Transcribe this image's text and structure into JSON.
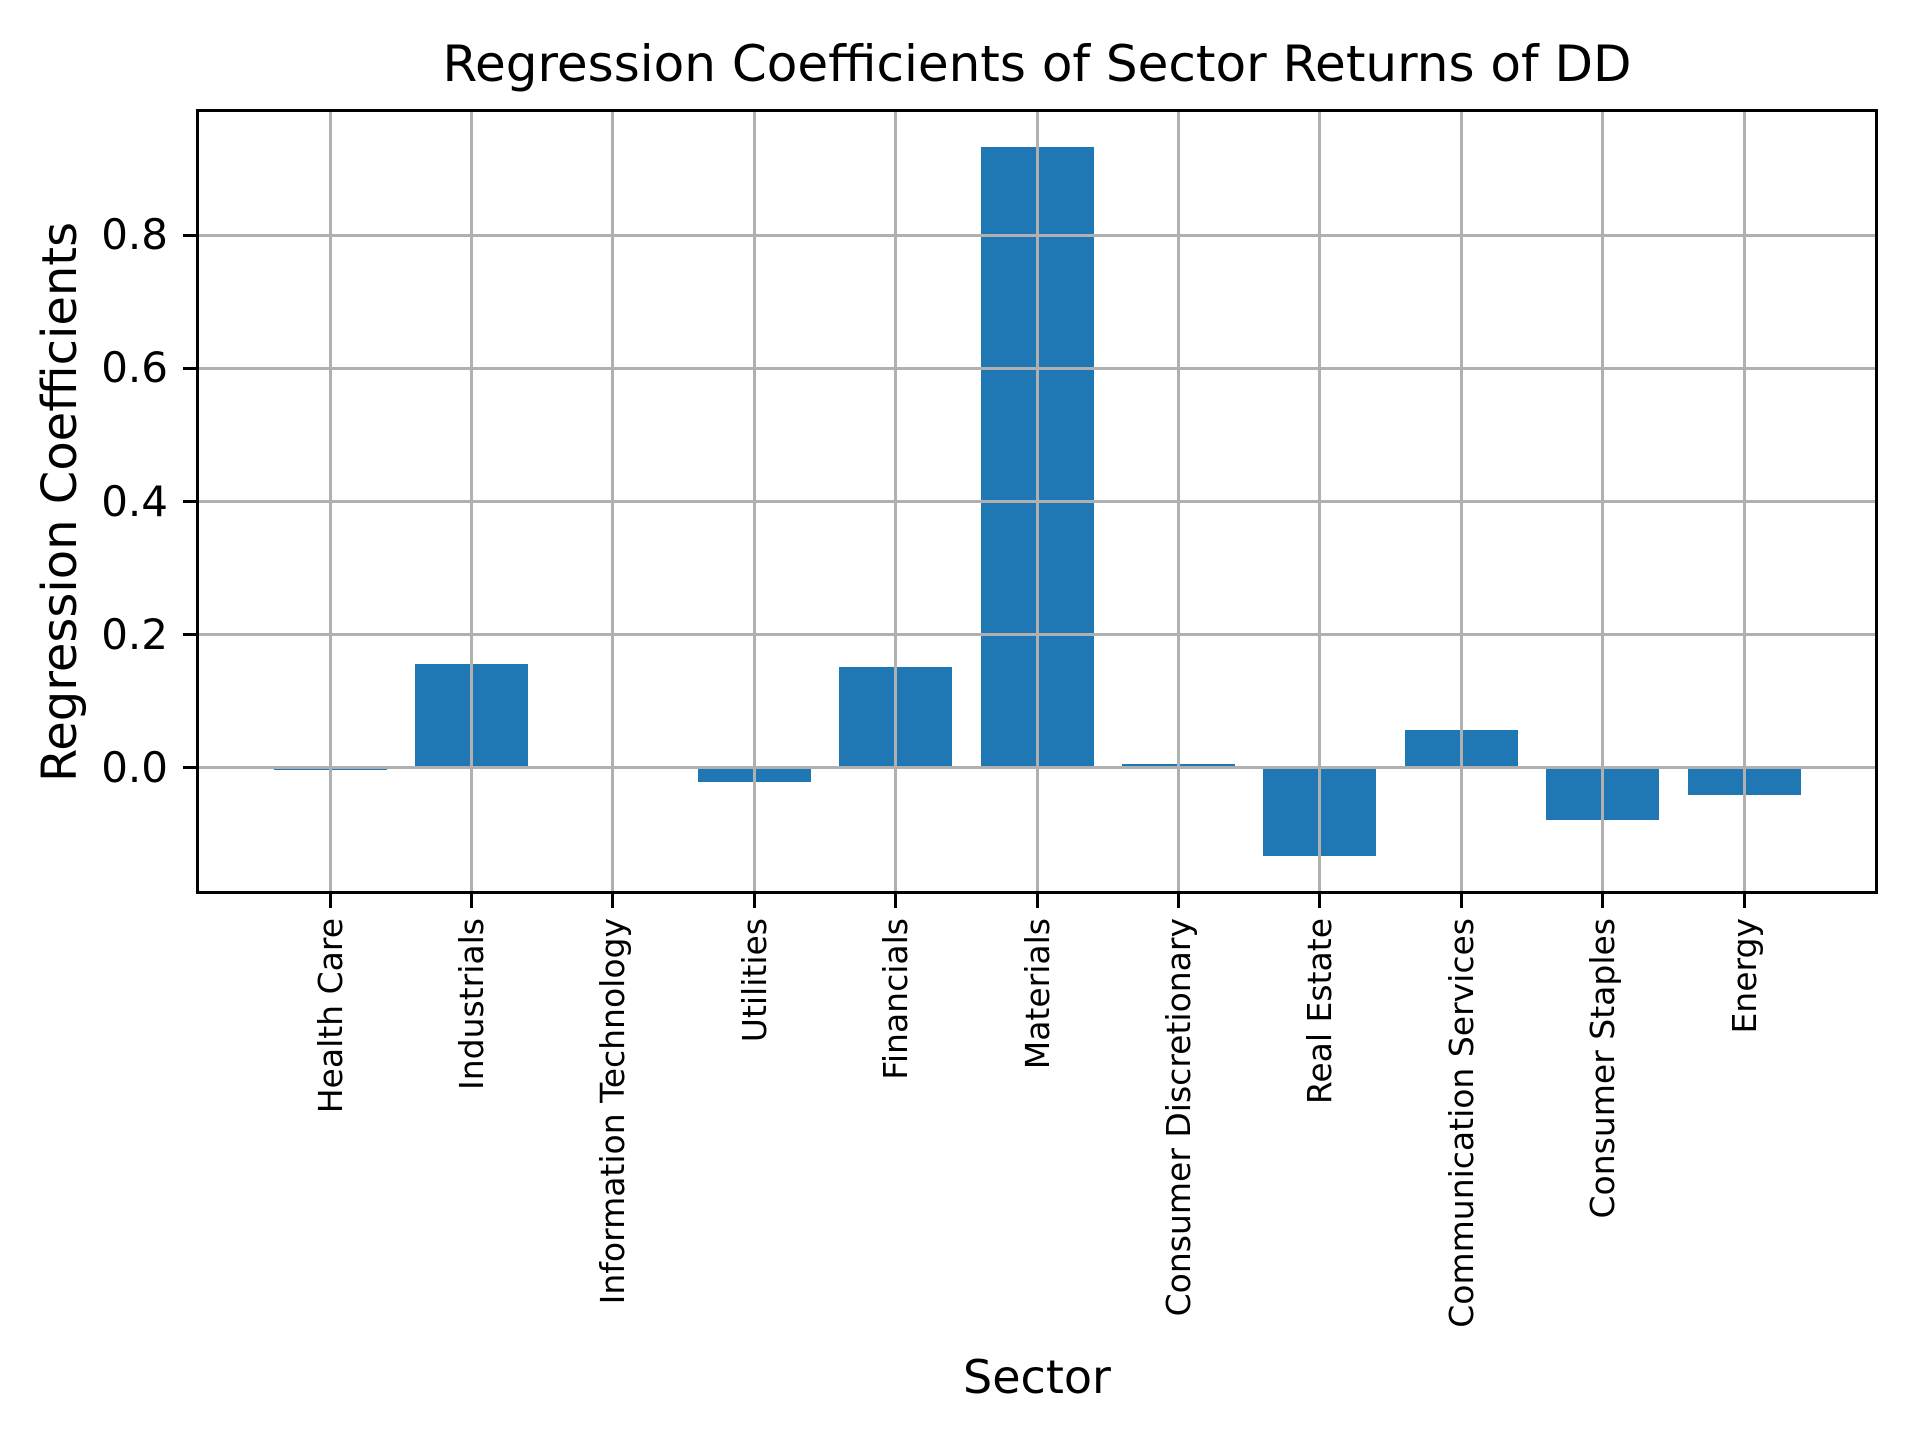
{
  "chart_data": {
    "type": "bar",
    "title": "Regression Coefficients of Sector Returns of DD",
    "xlabel": "Sector",
    "ylabel": "Regression Coefficients",
    "categories": [
      "Health Care",
      "Industrials",
      "Information Technology",
      "Utilities",
      "Financials",
      "Materials",
      "Consumer Discretionary",
      "Real Estate",
      "Communication Services",
      "Consumer Staples",
      "Energy"
    ],
    "values": [
      -0.004,
      0.156,
      0.0,
      -0.022,
      0.152,
      0.932,
      0.006,
      -0.132,
      0.057,
      -0.079,
      -0.041
    ],
    "ytick_labels": [
      "0.0",
      "0.2",
      "0.4",
      "0.6",
      "0.8"
    ],
    "ytick_values": [
      0.0,
      0.2,
      0.4,
      0.6,
      0.8
    ],
    "ylim": [
      -0.185,
      0.985
    ],
    "grid": true,
    "legend": false,
    "colors": {
      "bar": "#1f77b4",
      "grid": "#b0b0b0",
      "spine": "#000000",
      "text": "#000000",
      "background": "#ffffff"
    }
  }
}
